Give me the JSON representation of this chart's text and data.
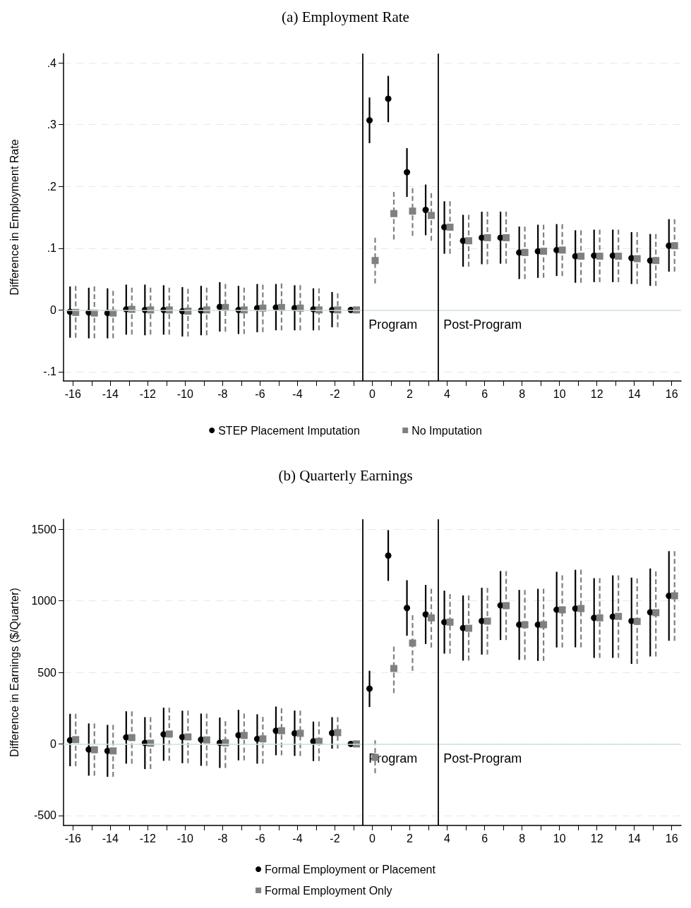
{
  "chart_data": [
    {
      "type": "scatter",
      "title": "(a) Employment Rate",
      "ylabel": "Difference in Employment Rate",
      "xlim": [
        -16.5,
        16.5
      ],
      "xticks": [
        -16,
        {
          "value": -15,
          "label": null
        },
        -14,
        {
          "value": -13,
          "label": null
        },
        -12,
        {
          "value": -11,
          "label": null
        },
        -10,
        {
          "value": -9,
          "label": null
        },
        -8,
        {
          "value": -7,
          "label": null
        },
        -6,
        {
          "value": -5,
          "label": null
        },
        -4,
        {
          "value": -3,
          "label": null
        },
        -2,
        {
          "value": -1,
          "label": null
        },
        0,
        {
          "value": 1,
          "label": null
        },
        2,
        {
          "value": 3,
          "label": null
        },
        4,
        {
          "value": 5,
          "label": null
        },
        6,
        {
          "value": 7,
          "label": null
        },
        8,
        {
          "value": 9,
          "label": null
        },
        10,
        {
          "value": 11,
          "label": null
        },
        12,
        {
          "value": 13,
          "label": null
        },
        14,
        {
          "value": 15,
          "label": null
        },
        16
      ],
      "ylim": [
        -0.115,
        0.415
      ],
      "yticks": [
        {
          "value": -0.1,
          "label": "-.1"
        },
        0,
        {
          "value": 0.1,
          "label": ".1"
        },
        {
          "value": 0.2,
          "label": ".2"
        },
        {
          "value": 0.3,
          "label": ".3"
        },
        {
          "value": 0.4,
          "label": ".4"
        }
      ],
      "grid": "y",
      "legend": "bottom",
      "ref_lines": [
        {
          "axis": "y",
          "value": 0,
          "color": "#cfdfe6"
        },
        {
          "axis": "x",
          "value": -0.5,
          "label": "Program",
          "color": "#000000"
        },
        {
          "axis": "x",
          "value": 3.5,
          "label": "Post-Program",
          "color": "#000000"
        }
      ],
      "series": [
        {
          "name": "STEP Placement Imputation",
          "color": "#000000",
          "marker": "circle",
          "line_style": "solid",
          "x": [
            -16.15,
            -15.15,
            -14.15,
            -13.15,
            -12.15,
            -11.15,
            -10.15,
            -9.15,
            -8.15,
            -7.15,
            -6.15,
            -5.15,
            -4.15,
            -3.15,
            -2.15,
            -1.15,
            -0.15,
            0.85,
            1.85,
            2.85,
            3.85,
            4.85,
            5.85,
            6.85,
            7.85,
            8.85,
            9.85,
            10.85,
            11.85,
            12.85,
            13.85,
            14.85,
            15.85
          ],
          "values": [
            -0.003,
            -0.004,
            -0.005,
            0.001,
            0,
            0,
            -0.002,
            -0.001,
            0.005,
            0,
            0.003,
            0.004,
            0.003,
            0.001,
            0,
            0,
            0.307,
            0.342,
            0.223,
            0.162,
            0.134,
            0.112,
            0.117,
            0.117,
            0.093,
            0.095,
            0.097,
            0.087,
            0.088,
            0.088,
            0.084,
            0.08,
            0.104
          ],
          "errors": [
            [
              -0.045,
              0.038
            ],
            [
              -0.046,
              0.036
            ],
            [
              -0.046,
              0.035
            ],
            [
              -0.04,
              0.041
            ],
            [
              -0.041,
              0.041
            ],
            [
              -0.04,
              0.04
            ],
            [
              -0.043,
              0.037
            ],
            [
              -0.041,
              0.039
            ],
            [
              -0.035,
              0.045
            ],
            [
              -0.039,
              0.039
            ],
            [
              -0.036,
              0.042
            ],
            [
              -0.033,
              0.042
            ],
            [
              -0.033,
              0.04
            ],
            [
              -0.033,
              0.035
            ],
            [
              -0.028,
              0.029
            ],
            null,
            [
              0.27,
              0.344
            ],
            [
              0.304,
              0.379
            ],
            [
              0.183,
              0.262
            ],
            [
              0.121,
              0.203
            ],
            [
              0.091,
              0.176
            ],
            [
              0.07,
              0.154
            ],
            [
              0.074,
              0.159
            ],
            [
              0.075,
              0.159
            ],
            [
              0.05,
              0.135
            ],
            [
              0.052,
              0.138
            ],
            [
              0.055,
              0.139
            ],
            [
              0.044,
              0.129
            ],
            [
              0.045,
              0.13
            ],
            [
              0.045,
              0.13
            ],
            [
              0.042,
              0.126
            ],
            [
              0.039,
              0.123
            ],
            [
              0.062,
              0.147
            ]
          ]
        },
        {
          "name": "No Imputation",
          "color": "#808080",
          "marker": "square",
          "line_style": "dashed",
          "x": [
            -15.85,
            -14.85,
            -13.85,
            -12.85,
            -11.85,
            -10.85,
            -9.85,
            -8.85,
            -7.85,
            -6.85,
            -5.85,
            -4.85,
            -3.85,
            -2.85,
            -1.85,
            -0.85,
            0.15,
            1.15,
            2.15,
            3.15,
            4.15,
            5.15,
            6.15,
            7.15,
            8.15,
            9.15,
            10.15,
            11.15,
            12.15,
            13.15,
            14.15,
            15.15,
            16.15
          ],
          "values": [
            -0.004,
            -0.005,
            -0.005,
            0.001,
            0,
            0,
            -0.002,
            0,
            0.004,
            0,
            0.003,
            0.004,
            0.003,
            0,
            0,
            0,
            0.08,
            0.156,
            0.16,
            0.153,
            0.134,
            0.112,
            0.117,
            0.117,
            0.093,
            0.095,
            0.097,
            0.087,
            0.087,
            0.087,
            0.083,
            0.08,
            0.104
          ],
          "errors": [
            [
              -0.045,
              0.039
            ],
            [
              -0.046,
              0.038
            ],
            [
              -0.046,
              0.031
            ],
            [
              -0.04,
              0.036
            ],
            [
              -0.04,
              0.036
            ],
            [
              -0.04,
              0.036
            ],
            [
              -0.043,
              0.034
            ],
            [
              -0.041,
              0.036
            ],
            [
              -0.035,
              0.042
            ],
            [
              -0.039,
              0.036
            ],
            [
              -0.036,
              0.041
            ],
            [
              -0.033,
              0.043
            ],
            [
              -0.033,
              0.04
            ],
            [
              -0.033,
              0.035
            ],
            [
              -0.028,
              0.027
            ],
            null,
            [
              0.043,
              0.117
            ],
            [
              0.114,
              0.191
            ],
            [
              0.12,
              0.197
            ],
            [
              0.112,
              0.189
            ],
            [
              0.091,
              0.176
            ],
            [
              0.07,
              0.154
            ],
            [
              0.074,
              0.159
            ],
            [
              0.075,
              0.159
            ],
            [
              0.05,
              0.135
            ],
            [
              0.052,
              0.138
            ],
            [
              0.055,
              0.139
            ],
            [
              0.044,
              0.129
            ],
            [
              0.045,
              0.13
            ],
            [
              0.045,
              0.13
            ],
            [
              0.042,
              0.126
            ],
            [
              0.039,
              0.123
            ],
            [
              0.062,
              0.147
            ]
          ]
        }
      ]
    },
    {
      "type": "scatter",
      "title": "(b) Quarterly Earnings",
      "ylabel": "Difference in Earnings ($/Quarter)",
      "xlim": [
        -16.5,
        16.5
      ],
      "xticks": [
        -16,
        {
          "value": -15,
          "label": null
        },
        -14,
        {
          "value": -13,
          "label": null
        },
        -12,
        {
          "value": -11,
          "label": null
        },
        -10,
        {
          "value": -9,
          "label": null
        },
        -8,
        {
          "value": -7,
          "label": null
        },
        -6,
        {
          "value": -5,
          "label": null
        },
        -4,
        {
          "value": -3,
          "label": null
        },
        -2,
        {
          "value": -1,
          "label": null
        },
        0,
        {
          "value": 1,
          "label": null
        },
        2,
        {
          "value": 3,
          "label": null
        },
        4,
        {
          "value": 5,
          "label": null
        },
        6,
        {
          "value": 7,
          "label": null
        },
        8,
        {
          "value": 9,
          "label": null
        },
        10,
        {
          "value": 11,
          "label": null
        },
        12,
        {
          "value": 13,
          "label": null
        },
        14,
        {
          "value": 15,
          "label": null
        },
        16
      ],
      "ylim": [
        -570,
        1570
      ],
      "yticks": [
        -500,
        0,
        500,
        1000,
        1500
      ],
      "grid": "y",
      "legend": "bottom",
      "ref_lines": [
        {
          "axis": "y",
          "value": 0,
          "color": "#cfdfe6"
        },
        {
          "axis": "x",
          "value": -0.5,
          "label": "Program",
          "color": "#000000"
        },
        {
          "axis": "x",
          "value": 3.5,
          "label": "Post-Program",
          "color": "#000000"
        }
      ],
      "series": [
        {
          "name": "Formal Employment or Placement",
          "color": "#000000",
          "marker": "circle",
          "line_style": "solid",
          "x": [
            -16.15,
            -15.15,
            -14.15,
            -13.15,
            -12.15,
            -11.15,
            -10.15,
            -9.15,
            -8.15,
            -7.15,
            -6.15,
            -5.15,
            -4.15,
            -3.15,
            -2.15,
            -1.15,
            -0.15,
            0.85,
            1.85,
            2.85,
            3.85,
            4.85,
            5.85,
            6.85,
            7.85,
            8.85,
            9.85,
            10.85,
            11.85,
            12.85,
            13.85,
            14.85,
            15.85
          ],
          "values": [
            26,
            -39,
            -49,
            46,
            7,
            67,
            48,
            30,
            8,
            61,
            35,
            92,
            74,
            18,
            76,
            0,
            386,
            1316,
            950,
            905,
            851,
            810,
            859,
            968,
            833,
            833,
            938,
            946,
            881,
            889,
            859,
            920,
            1035
          ],
          "errors": [
            [
              -156,
              210
            ],
            [
              -222,
              143
            ],
            [
              -230,
              133
            ],
            [
              -138,
              228
            ],
            [
              -176,
              187
            ],
            [
              -118,
              253
            ],
            [
              -135,
              232
            ],
            [
              -153,
              212
            ],
            [
              -168,
              184
            ],
            [
              -115,
              238
            ],
            [
              -138,
              207
            ],
            [
              -79,
              261
            ],
            [
              -84,
              233
            ],
            [
              -120,
              156
            ],
            [
              -33,
              187
            ],
            null,
            [
              258,
              511
            ],
            [
              1139,
              1494
            ],
            [
              756,
              1144
            ],
            [
              698,
              1111
            ],
            [
              631,
              1071
            ],
            [
              582,
              1038
            ],
            [
              624,
              1091
            ],
            [
              726,
              1208
            ],
            [
              587,
              1076
            ],
            [
              580,
              1084
            ],
            [
              674,
              1203
            ],
            [
              675,
              1217
            ],
            [
              601,
              1158
            ],
            [
              601,
              1178
            ],
            [
              559,
              1162
            ],
            [
              611,
              1226
            ],
            [
              721,
              1347
            ]
          ]
        },
        {
          "name": "Formal Employment Only",
          "color": "#808080",
          "marker": "square",
          "line_style": "dashed",
          "x": [
            -15.85,
            -14.85,
            -13.85,
            -12.85,
            -11.85,
            -10.85,
            -9.85,
            -8.85,
            -7.85,
            -6.85,
            -5.85,
            -4.85,
            -3.85,
            -2.85,
            -1.85,
            -0.85,
            0.15,
            1.15,
            2.15,
            3.15,
            4.15,
            5.15,
            6.15,
            7.15,
            8.15,
            9.15,
            10.15,
            11.15,
            12.15,
            13.15,
            14.15,
            15.15,
            16.15
          ],
          "values": [
            30,
            -41,
            -49,
            44,
            5,
            69,
            49,
            28,
            8,
            59,
            35,
            92,
            74,
            18,
            79,
            0,
            -94,
            527,
            705,
            881,
            851,
            808,
            858,
            966,
            833,
            833,
            937,
            946,
            881,
            891,
            856,
            917,
            1035
          ],
          "errors": [
            [
              -156,
              210
            ],
            [
              -222,
              143
            ],
            [
              -230,
              133
            ],
            [
              -138,
              228
            ],
            [
              -176,
              187
            ],
            [
              -118,
              253
            ],
            [
              -135,
              232
            ],
            [
              -153,
              212
            ],
            [
              -168,
              159
            ],
            [
              -115,
              212
            ],
            [
              -138,
              189
            ],
            [
              -79,
              248
            ],
            [
              -84,
              233
            ],
            [
              -120,
              156
            ],
            [
              -33,
              187
            ],
            null,
            [
              -205,
              25
            ],
            [
              355,
              680
            ],
            [
              511,
              900
            ],
            [
              674,
              1084
            ],
            [
              631,
              1047
            ],
            [
              582,
              1038
            ],
            [
              624,
              1091
            ],
            [
              726,
              1208
            ],
            [
              587,
              1076
            ],
            [
              580,
              1084
            ],
            [
              674,
              1178
            ],
            [
              675,
              1217
            ],
            [
              601,
              1158
            ],
            [
              601,
              1178
            ],
            [
              559,
              1156
            ],
            [
              611,
              1205
            ],
            [
              721,
              1347
            ]
          ]
        }
      ]
    }
  ]
}
